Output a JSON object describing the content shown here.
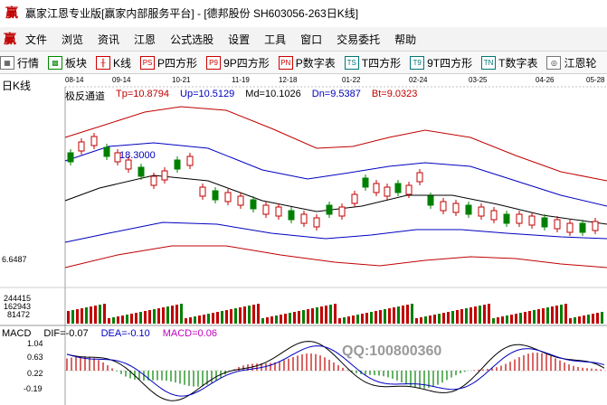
{
  "window": {
    "title": "赢家江恩专业版[赢家内部服务平台] - [德邦股份  SH603056-263日K线]"
  },
  "menu": {
    "items": [
      "文件",
      "浏览",
      "资讯",
      "江恩",
      "公式选股",
      "设置",
      "工具",
      "窗口",
      "交易委托",
      "帮助"
    ]
  },
  "toolbar": {
    "items": [
      {
        "icon": "grid-icon",
        "label": "行情"
      },
      {
        "icon": "blocks-icon",
        "label": "板块"
      },
      {
        "icon": "candlestick-icon",
        "label": "K线"
      },
      {
        "icon": "ps-icon",
        "label": "P四方形"
      },
      {
        "icon": "p9-icon",
        "label": "9P四方形"
      },
      {
        "icon": "pn-icon",
        "label": "P数字表"
      },
      {
        "icon": "ts-icon",
        "label": "T四方形"
      },
      {
        "icon": "t9-icon",
        "label": "9T四方形"
      },
      {
        "icon": "tn-icon",
        "label": "T数字表"
      },
      {
        "icon": "wheel-icon",
        "label": "江恩轮"
      }
    ]
  },
  "chart": {
    "period_label": "日K线",
    "dates": [
      "08-14",
      "09-14",
      "10-21",
      "11-19",
      "12-18",
      "01-22",
      "02-24",
      "03-25",
      "04-26",
      "05-28"
    ],
    "indicator": {
      "name": "极反通道",
      "tp": "Tp=10.8794",
      "up": "Up=10.5129",
      "md": "Md=10.1026",
      "dn": "Dn=9.5387",
      "bt": "Bt=9.0323"
    },
    "max_label": "18.3000",
    "price_axis_low": "6.6487",
    "volume_axis": [
      "244415",
      "162943",
      "81472"
    ],
    "macd": {
      "name": "MACD",
      "dif": "DIF=-0.07",
      "dea": "DEA=-0.10",
      "macd": "MACD=0.06",
      "axis": [
        "1.04",
        "0.63",
        "0.22",
        "-0.19"
      ]
    },
    "overlay_text": "QQ:100800360",
    "colors": {
      "up": "#c00000",
      "down": "#008000",
      "band_upper": "#c00000",
      "band_lower": "#0000c0"
    }
  }
}
